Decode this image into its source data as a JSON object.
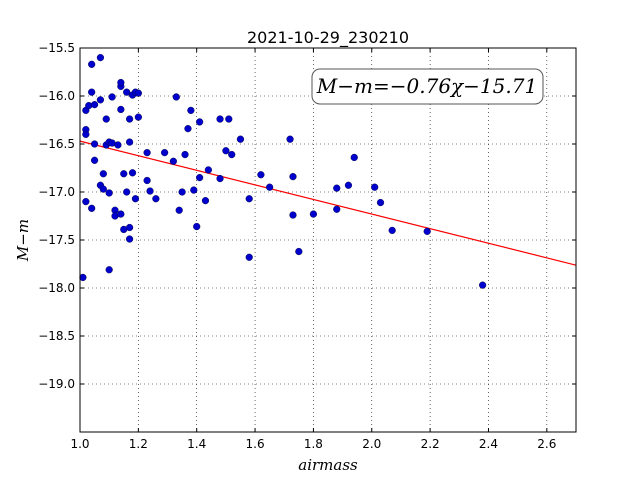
{
  "chart_data": {
    "type": "scatter",
    "title": "2021-10-29_230210",
    "xlabel": "airmass",
    "ylabel": "M−m",
    "xlim": [
      1.0,
      2.7
    ],
    "ylim": [
      -15.5,
      -19.5
    ],
    "y_inverted": true,
    "grid": true,
    "x_ticks": [
      "1.0",
      "1.2",
      "1.4",
      "1.6",
      "1.8",
      "2.0",
      "2.2",
      "2.4",
      "2.6"
    ],
    "y_ticks": [
      "−15.5",
      "−16.0",
      "−16.5",
      "−17.0",
      "−17.5",
      "−18.0",
      "−18.5",
      "−19.0"
    ],
    "annotation": "M−m=−0.76χ−15.71",
    "fit": {
      "slope": -0.76,
      "intercept": -15.71,
      "color": "#ff0000"
    },
    "marker_color": "#0000cc",
    "points": [
      {
        "x": 1.01,
        "y": -17.89
      },
      {
        "x": 1.02,
        "y": -16.35
      },
      {
        "x": 1.02,
        "y": -16.4
      },
      {
        "x": 1.02,
        "y": -16.15
      },
      {
        "x": 1.03,
        "y": -16.1
      },
      {
        "x": 1.02,
        "y": -17.1
      },
      {
        "x": 1.04,
        "y": -17.17
      },
      {
        "x": 1.04,
        "y": -15.67
      },
      {
        "x": 1.04,
        "y": -15.96
      },
      {
        "x": 1.05,
        "y": -16.09
      },
      {
        "x": 1.05,
        "y": -16.67
      },
      {
        "x": 1.05,
        "y": -16.5
      },
      {
        "x": 1.07,
        "y": -15.6
      },
      {
        "x": 1.07,
        "y": -16.04
      },
      {
        "x": 1.07,
        "y": -16.93
      },
      {
        "x": 1.08,
        "y": -16.97
      },
      {
        "x": 1.08,
        "y": -16.81
      },
      {
        "x": 1.09,
        "y": -16.51
      },
      {
        "x": 1.09,
        "y": -16.24
      },
      {
        "x": 1.1,
        "y": -16.48
      },
      {
        "x": 1.1,
        "y": -17.81
      },
      {
        "x": 1.11,
        "y": -16.01
      },
      {
        "x": 1.1,
        "y": -17.01
      },
      {
        "x": 1.11,
        "y": -16.49
      },
      {
        "x": 1.12,
        "y": -17.19
      },
      {
        "x": 1.12,
        "y": -17.25
      },
      {
        "x": 1.13,
        "y": -16.51
      },
      {
        "x": 1.14,
        "y": -17.23
      },
      {
        "x": 1.14,
        "y": -15.9
      },
      {
        "x": 1.14,
        "y": -15.86
      },
      {
        "x": 1.14,
        "y": -16.14
      },
      {
        "x": 1.15,
        "y": -16.81
      },
      {
        "x": 1.15,
        "y": -17.39
      },
      {
        "x": 1.16,
        "y": -17.0
      },
      {
        "x": 1.16,
        "y": -15.96
      },
      {
        "x": 1.17,
        "y": -16.48
      },
      {
        "x": 1.17,
        "y": -17.37
      },
      {
        "x": 1.17,
        "y": -17.49
      },
      {
        "x": 1.17,
        "y": -16.24
      },
      {
        "x": 1.18,
        "y": -15.99
      },
      {
        "x": 1.18,
        "y": -16.8
      },
      {
        "x": 1.19,
        "y": -15.96
      },
      {
        "x": 1.19,
        "y": -17.07
      },
      {
        "x": 1.2,
        "y": -15.97
      },
      {
        "x": 1.2,
        "y": -16.22
      },
      {
        "x": 1.23,
        "y": -16.59
      },
      {
        "x": 1.23,
        "y": -16.88
      },
      {
        "x": 1.24,
        "y": -16.99
      },
      {
        "x": 1.26,
        "y": -17.07
      },
      {
        "x": 1.29,
        "y": -16.59
      },
      {
        "x": 1.32,
        "y": -16.68
      },
      {
        "x": 1.33,
        "y": -16.01
      },
      {
        "x": 1.34,
        "y": -17.19
      },
      {
        "x": 1.35,
        "y": -17.0
      },
      {
        "x": 1.36,
        "y": -16.61
      },
      {
        "x": 1.37,
        "y": -16.34
      },
      {
        "x": 1.38,
        "y": -16.15
      },
      {
        "x": 1.39,
        "y": -16.98
      },
      {
        "x": 1.4,
        "y": -17.36
      },
      {
        "x": 1.41,
        "y": -16.27
      },
      {
        "x": 1.41,
        "y": -16.85
      },
      {
        "x": 1.43,
        "y": -17.09
      },
      {
        "x": 1.44,
        "y": -16.77
      },
      {
        "x": 1.48,
        "y": -16.24
      },
      {
        "x": 1.48,
        "y": -16.86
      },
      {
        "x": 1.5,
        "y": -16.57
      },
      {
        "x": 1.51,
        "y": -16.24
      },
      {
        "x": 1.52,
        "y": -16.61
      },
      {
        "x": 1.55,
        "y": -16.45
      },
      {
        "x": 1.58,
        "y": -17.07
      },
      {
        "x": 1.58,
        "y": -17.68
      },
      {
        "x": 1.62,
        "y": -16.82
      },
      {
        "x": 1.65,
        "y": -16.95
      },
      {
        "x": 1.72,
        "y": -16.45
      },
      {
        "x": 1.73,
        "y": -16.84
      },
      {
        "x": 1.73,
        "y": -17.24
      },
      {
        "x": 1.75,
        "y": -17.62
      },
      {
        "x": 1.8,
        "y": -17.23
      },
      {
        "x": 1.88,
        "y": -16.96
      },
      {
        "x": 1.88,
        "y": -17.18
      },
      {
        "x": 1.92,
        "y": -16.93
      },
      {
        "x": 1.94,
        "y": -16.64
      },
      {
        "x": 2.01,
        "y": -16.95
      },
      {
        "x": 2.03,
        "y": -17.11
      },
      {
        "x": 2.07,
        "y": -17.4
      },
      {
        "x": 2.19,
        "y": -17.41
      },
      {
        "x": 2.38,
        "y": -17.97
      }
    ]
  }
}
